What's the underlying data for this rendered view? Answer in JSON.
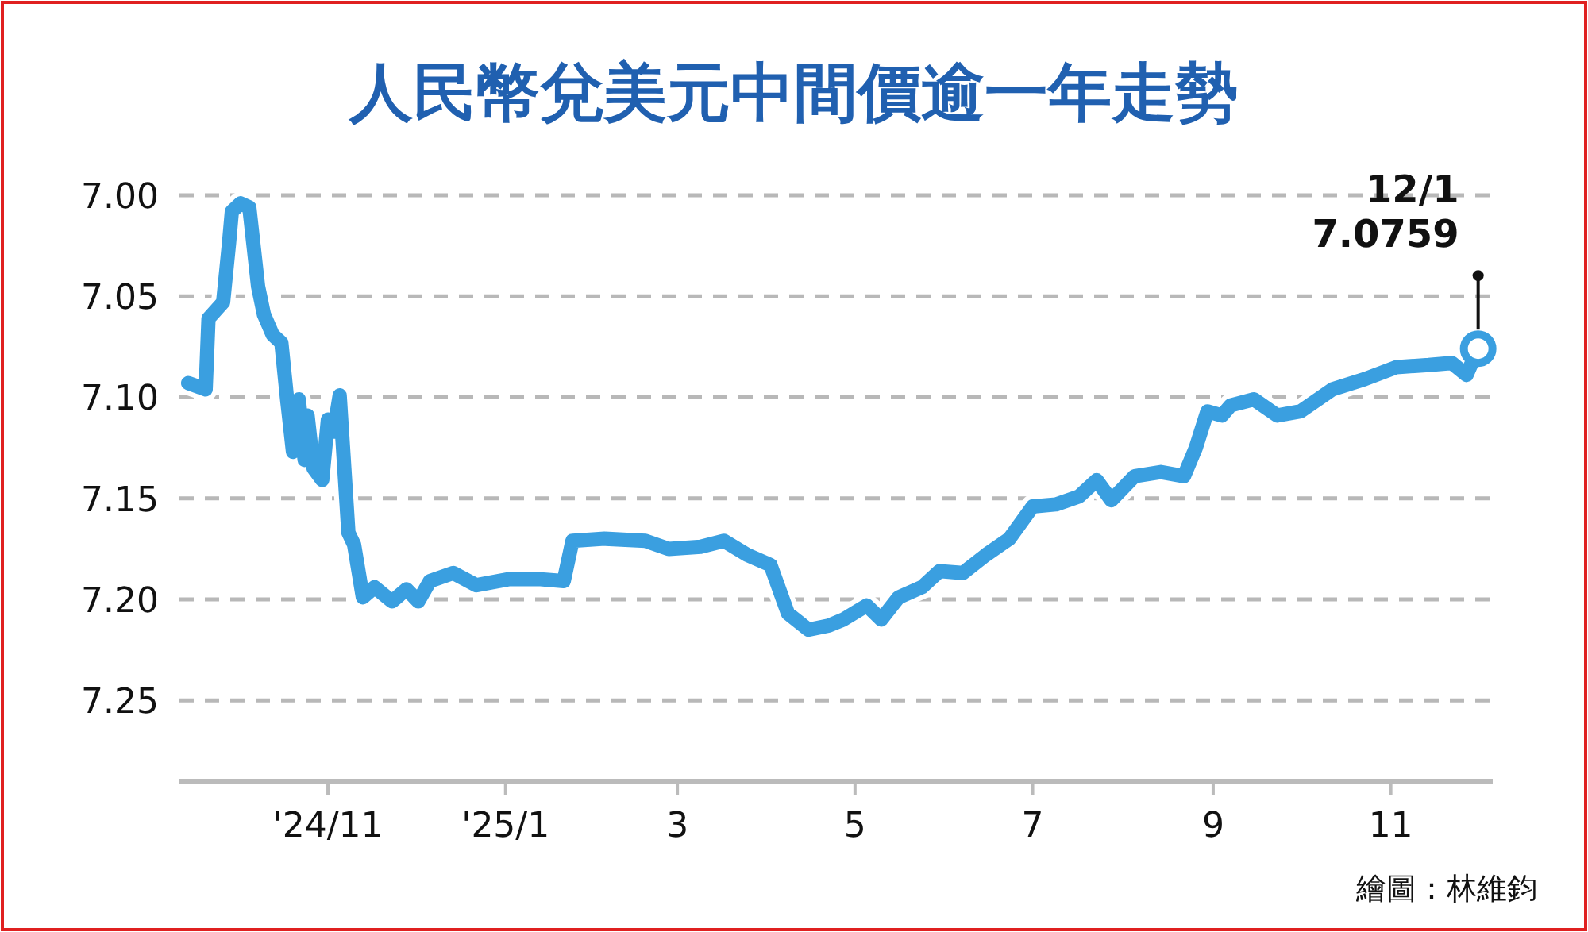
{
  "chart_data": {
    "type": "line",
    "title": "人民幣兌美元中間價逾一年走勢",
    "x": [
      "2024-09-14",
      "2024-09-20",
      "2024-09-21",
      "2024-09-26",
      "2024-09-28",
      "2024-09-29",
      "2024-10-02",
      "2024-10-05",
      "2024-10-08",
      "2024-10-10",
      "2024-10-13",
      "2024-10-16",
      "2024-10-18",
      "2024-10-20",
      "2024-10-22",
      "2024-10-24",
      "2024-10-25",
      "2024-10-27",
      "2024-10-30",
      "2024-11-01",
      "2024-11-03",
      "2024-11-05",
      "2024-11-08",
      "2024-11-10",
      "2024-11-13",
      "2024-11-17",
      "2024-11-23",
      "2024-11-28",
      "2024-12-02",
      "2024-12-06",
      "2024-12-14",
      "2024-12-22",
      "2025-01-02",
      "2025-01-13",
      "2025-01-21",
      "2025-01-24",
      "2025-02-04",
      "2025-02-18",
      "2025-02-26",
      "2025-03-09",
      "2025-03-17",
      "2025-03-25",
      "2025-04-02",
      "2025-04-08",
      "2025-04-15",
      "2025-04-22",
      "2025-04-27",
      "2025-05-05",
      "2025-05-10",
      "2025-05-16",
      "2025-05-24",
      "2025-05-30",
      "2025-06-07",
      "2025-06-15",
      "2025-06-23",
      "2025-07-01",
      "2025-07-09",
      "2025-07-17",
      "2025-07-23",
      "2025-07-28",
      "2025-08-05",
      "2025-08-14",
      "2025-08-22",
      "2025-08-26",
      "2025-08-30",
      "2025-09-04",
      "2025-09-07",
      "2025-09-15",
      "2025-09-23",
      "2025-10-01",
      "2025-10-12",
      "2025-10-23",
      "2025-11-03",
      "2025-11-14",
      "2025-11-22",
      "2025-11-27",
      "2025-12-01"
    ],
    "series": [
      {
        "color": "#3a9fe0",
        "values": [
          7.093,
          7.096,
          7.061,
          7.053,
          7.024,
          7.008,
          7.004,
          7.006,
          7.045,
          7.059,
          7.069,
          7.073,
          7.101,
          7.127,
          7.101,
          7.131,
          7.109,
          7.135,
          7.141,
          7.111,
          7.117,
          7.099,
          7.167,
          7.173,
          7.199,
          7.194,
          7.201,
          7.195,
          7.201,
          7.191,
          7.187,
          7.193,
          7.19,
          7.19,
          7.191,
          7.171,
          7.17,
          7.171,
          7.175,
          7.174,
          7.171,
          7.178,
          7.183,
          7.207,
          7.215,
          7.213,
          7.21,
          7.203,
          7.21,
          7.199,
          7.194,
          7.186,
          7.187,
          7.178,
          7.17,
          7.154,
          7.153,
          7.149,
          7.141,
          7.151,
          7.139,
          7.137,
          7.139,
          7.125,
          7.107,
          7.109,
          7.104,
          7.101,
          7.109,
          7.107,
          7.096,
          7.091,
          7.085,
          7.084,
          7.083,
          7.089,
          7.0759
        ]
      }
    ],
    "ylim": [
      7.29,
      7.0
    ],
    "yticks": [
      {
        "value": 7.0,
        "label": "7.00"
      },
      7.05,
      {
        "value": 7.1,
        "label": "7.10"
      },
      7.15,
      {
        "value": 7.2,
        "label": "7.20"
      },
      7.25
    ],
    "xlim": [
      "2024-09-11",
      "2025-12-06"
    ],
    "xticks": [
      {
        "value": "2024-11-01",
        "label": "'24/11"
      },
      {
        "value": "2025-01-01",
        "label": "'25/1"
      },
      {
        "value": "2025-03-01",
        "label": "3"
      },
      {
        "value": "2025-05-01",
        "label": "5"
      },
      {
        "value": "2025-07-01",
        "label": "7"
      },
      {
        "value": "2025-09-01",
        "label": "9"
      },
      {
        "value": "2025-11-01",
        "label": "11"
      }
    ],
    "grid": "y",
    "marker": "none",
    "line_style": "solid",
    "annotations": [
      {
        "text": "12/1\n7.0759",
        "x": "2025-12-01",
        "y": 7.0759
      },
      "繪圖：林維鈞"
    ]
  }
}
